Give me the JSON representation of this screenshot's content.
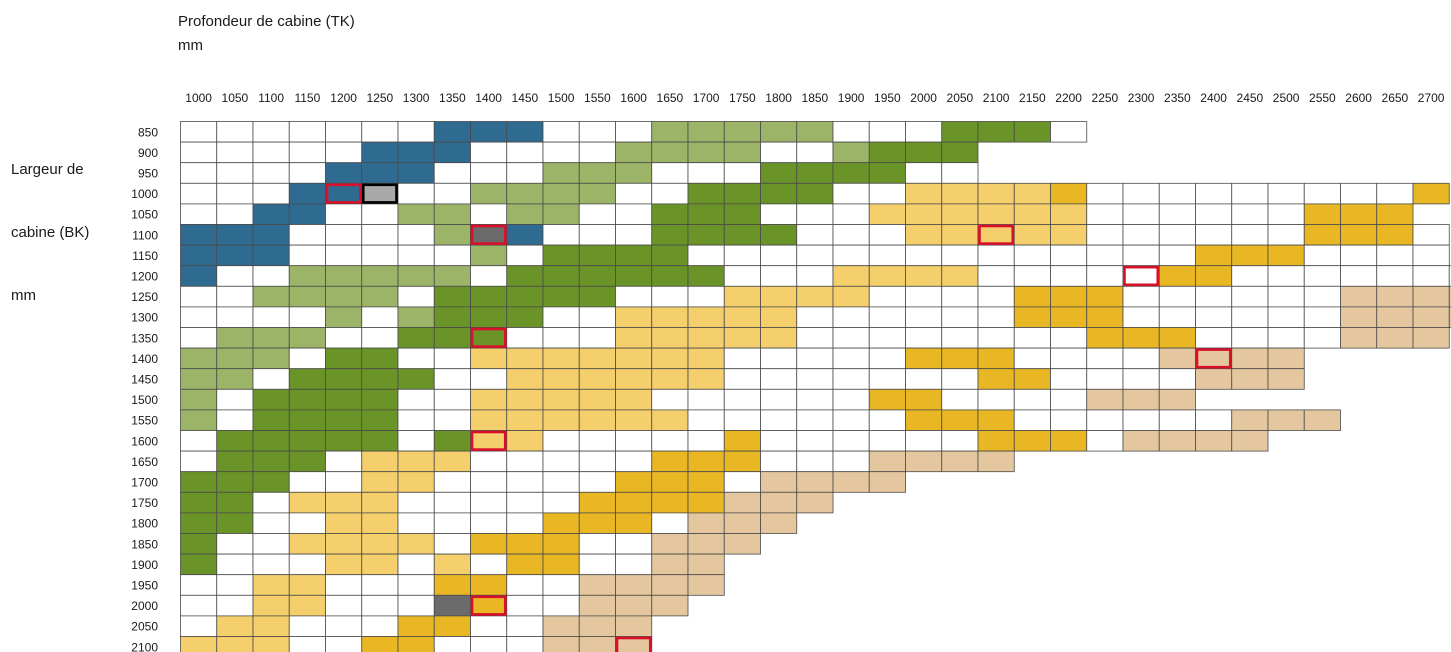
{
  "chart_data": {
    "type": "heatmap",
    "title": "Profondeur de cabine (TK)",
    "title_unit": "mm",
    "ylabel_lines": [
      "Largeur de",
      "cabine (BK)",
      "mm"
    ],
    "x": [
      1000,
      1050,
      1100,
      1150,
      1200,
      1250,
      1300,
      1350,
      1400,
      1450,
      1500,
      1550,
      1600,
      1650,
      1700,
      1750,
      1800,
      1850,
      1900,
      1950,
      2000,
      2050,
      2100,
      2150,
      2200,
      2250,
      2300,
      2350,
      2400,
      2450,
      2500,
      2550,
      2600,
      2650,
      2700
    ],
    "y": [
      850,
      900,
      950,
      1000,
      1050,
      1100,
      1150,
      1200,
      1250,
      1300,
      1350,
      1400,
      1450,
      1500,
      1550,
      1600,
      1650,
      1700,
      1750,
      1800,
      1850,
      1900,
      1950,
      2000,
      2050,
      2100
    ],
    "colors": {
      "0": "#ffffff",
      "1": "#2f6b91",
      "2": "#9bb468",
      "3": "#6b9428",
      "4": "#f4cf6c",
      "5": "#e8b723",
      "6": "#e4c79e",
      "7": "#6b6b6b",
      "8": "#a9a9a9"
    },
    "highlight_colors": {
      "red": "#d9102a",
      "black": "#000000"
    },
    "rows": [
      "0000000111000222220003330",
      "0000011100002222002333",
      "0000111000222000333300",
      "00011800222200333300444450000000005",
      "0011002202200333000444444000000555",
      "11100002710003333000444440000005550",
      "11100000203333000000000000005550000",
      "1002222203333330004444000005500000006",
      "0022220333330004444000055500000066666",
      "0000202333004444400000055500000066666",
      "02220033300044444000000005550000666",
      "2220330044444440000055500006666",
      "2203333004444440000000550000666",
      "2033330044444000000550000666",
      "20333300444444000000555000000666",
      "033333034400000500000055506666",
      "03330444000005550006666",
      "33300440000055506666",
      "330444000005555666",
      "33004400005550666",
      "3004444055500666",
      "300044040550066",
      "004400055006666",
      "00440007500666",
      "0440005500666",
      "4440055000666"
    ],
    "highlights": [
      {
        "row": 1000,
        "col": 1200,
        "outline": "red"
      },
      {
        "row": 1000,
        "col": 1250,
        "outline": "black"
      },
      {
        "row": 1100,
        "col": 1400,
        "outline": "red"
      },
      {
        "row": 1100,
        "col": 2100,
        "outline": "red"
      },
      {
        "row": 1200,
        "col": 2300,
        "outline": "red"
      },
      {
        "row": 1350,
        "col": 1400,
        "outline": "red"
      },
      {
        "row": 1400,
        "col": 2400,
        "outline": "red"
      },
      {
        "row": 1600,
        "col": 1400,
        "outline": "red"
      },
      {
        "row": 2000,
        "col": 1400,
        "outline": "red"
      },
      {
        "row": 2100,
        "col": 1600,
        "outline": "red"
      }
    ]
  }
}
